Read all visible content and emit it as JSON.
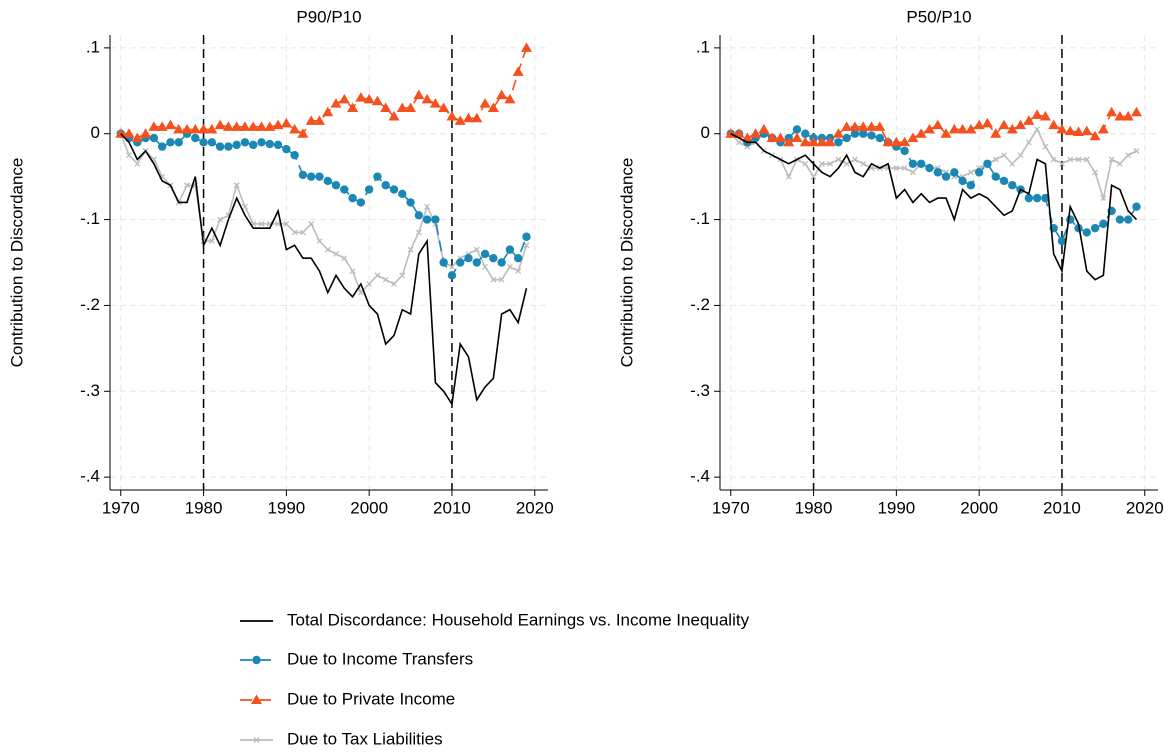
{
  "chart_data": [
    {
      "type": "line",
      "title": "P90/P10",
      "ylabel": "Contribution to Discordance",
      "x": [
        1970,
        1971,
        1972,
        1973,
        1974,
        1975,
        1976,
        1977,
        1978,
        1979,
        1980,
        1981,
        1982,
        1983,
        1984,
        1985,
        1986,
        1987,
        1988,
        1989,
        1990,
        1991,
        1992,
        1993,
        1994,
        1995,
        1996,
        1997,
        1998,
        1999,
        2000,
        2001,
        2002,
        2003,
        2004,
        2005,
        2006,
        2007,
        2008,
        2009,
        2010,
        2011,
        2012,
        2013,
        2014,
        2015,
        2016,
        2017,
        2018,
        2019
      ],
      "xlim": [
        1968.7,
        2021.6
      ],
      "xticks": [
        1970,
        1980,
        1990,
        2000,
        2010,
        2020
      ],
      "ylim": [
        -0.415,
        0.115
      ],
      "yticks": [
        {
          "value": -0.4,
          "label": "-.4"
        },
        {
          "value": -0.3,
          "label": "-.3"
        },
        {
          "value": -0.2,
          "label": "-.2"
        },
        {
          "value": -0.1,
          "label": "-.1"
        },
        0,
        {
          "value": 0.1,
          "label": ".1"
        }
      ],
      "vlines": [
        1980,
        2010
      ],
      "grid": true,
      "series": [
        {
          "name": "Total Discordance: Household Earnings vs. Income Inequality",
          "color": "#000000",
          "dash": "solid",
          "marker": "none",
          "values": [
            0,
            -0.01,
            -0.03,
            -0.02,
            -0.035,
            -0.055,
            -0.06,
            -0.08,
            -0.08,
            -0.05,
            -0.13,
            -0.11,
            -0.13,
            -0.1,
            -0.075,
            -0.095,
            -0.11,
            -0.11,
            -0.11,
            -0.09,
            -0.135,
            -0.13,
            -0.145,
            -0.145,
            -0.16,
            -0.185,
            -0.165,
            -0.18,
            -0.19,
            -0.175,
            -0.2,
            -0.21,
            -0.245,
            -0.235,
            -0.205,
            -0.21,
            -0.14,
            -0.125,
            -0.29,
            -0.3,
            -0.315,
            -0.245,
            -0.26,
            -0.31,
            -0.295,
            -0.285,
            -0.21,
            -0.205,
            -0.22,
            -0.18
          ]
        },
        {
          "name": "Due to Income Transfers",
          "color": "#1a87b4",
          "dash": "dashed",
          "marker": "circle",
          "values": [
            0,
            -0.005,
            -0.01,
            -0.005,
            -0.005,
            -0.015,
            -0.01,
            -0.01,
            0,
            -0.005,
            -0.01,
            -0.01,
            -0.015,
            -0.015,
            -0.013,
            -0.01,
            -0.013,
            -0.01,
            -0.012,
            -0.013,
            -0.018,
            -0.025,
            -0.048,
            -0.05,
            -0.05,
            -0.055,
            -0.06,
            -0.065,
            -0.075,
            -0.08,
            -0.065,
            -0.05,
            -0.06,
            -0.065,
            -0.07,
            -0.08,
            -0.095,
            -0.1,
            -0.1,
            -0.15,
            -0.165,
            -0.15,
            -0.145,
            -0.15,
            -0.14,
            -0.145,
            -0.15,
            -0.135,
            -0.145,
            -0.12
          ]
        },
        {
          "name": "Due to Private Income",
          "color": "#f4511e",
          "dash": "dashed",
          "marker": "triangle",
          "values": [
            0,
            0,
            -0.005,
            0,
            0.008,
            0.008,
            0.01,
            0.005,
            0.005,
            0.005,
            0.005,
            0.005,
            0.01,
            0.008,
            0.008,
            0.008,
            0.008,
            0.008,
            0.008,
            0.01,
            0.012,
            0.005,
            0,
            0.015,
            0.015,
            0.025,
            0.035,
            0.04,
            0.03,
            0.042,
            0.04,
            0.038,
            0.03,
            0.02,
            0.03,
            0.03,
            0.045,
            0.04,
            0.035,
            0.03,
            0.02,
            0.015,
            0.018,
            0.018,
            0.035,
            0.03,
            0.045,
            0.04,
            0.072,
            0.1
          ]
        },
        {
          "name": "Due to Tax Liabilities",
          "color": "#bcbcbc",
          "dash": "solid",
          "marker": "x",
          "values": [
            0,
            -0.025,
            -0.035,
            -0.02,
            -0.03,
            -0.05,
            -0.06,
            -0.08,
            -0.06,
            -0.06,
            -0.125,
            -0.125,
            -0.1,
            -0.095,
            -0.06,
            -0.085,
            -0.105,
            -0.105,
            -0.105,
            -0.105,
            -0.105,
            -0.115,
            -0.115,
            -0.105,
            -0.125,
            -0.135,
            -0.14,
            -0.145,
            -0.16,
            -0.185,
            -0.175,
            -0.165,
            -0.17,
            -0.175,
            -0.165,
            -0.135,
            -0.115,
            -0.085,
            -0.105,
            -0.15,
            -0.155,
            -0.145,
            -0.14,
            -0.135,
            -0.155,
            -0.17,
            -0.17,
            -0.155,
            -0.16,
            -0.13
          ]
        }
      ]
    },
    {
      "type": "line",
      "title": "P50/P10",
      "ylabel": "Contribution to Discordance",
      "x": [
        1970,
        1971,
        1972,
        1973,
        1974,
        1975,
        1976,
        1977,
        1978,
        1979,
        1980,
        1981,
        1982,
        1983,
        1984,
        1985,
        1986,
        1987,
        1988,
        1989,
        1990,
        1991,
        1992,
        1993,
        1994,
        1995,
        1996,
        1997,
        1998,
        1999,
        2000,
        2001,
        2002,
        2003,
        2004,
        2005,
        2006,
        2007,
        2008,
        2009,
        2010,
        2011,
        2012,
        2013,
        2014,
        2015,
        2016,
        2017,
        2018,
        2019
      ],
      "xlim": [
        1968.7,
        2021.6
      ],
      "xticks": [
        1970,
        1980,
        1990,
        2000,
        2010,
        2020
      ],
      "ylim": [
        -0.415,
        0.115
      ],
      "yticks": [
        {
          "value": -0.4,
          "label": "-.4"
        },
        {
          "value": -0.3,
          "label": "-.3"
        },
        {
          "value": -0.2,
          "label": "-.2"
        },
        {
          "value": -0.1,
          "label": "-.1"
        },
        0,
        {
          "value": 0.1,
          "label": ".1"
        }
      ],
      "vlines": [
        1980,
        2010
      ],
      "grid": true,
      "series": [
        {
          "color": "#000000",
          "dash": "solid",
          "marker": "none",
          "values": [
            0,
            -0.005,
            -0.01,
            -0.01,
            -0.02,
            -0.025,
            -0.03,
            -0.035,
            -0.03,
            -0.025,
            -0.035,
            -0.045,
            -0.05,
            -0.04,
            -0.025,
            -0.045,
            -0.05,
            -0.035,
            -0.04,
            -0.035,
            -0.075,
            -0.065,
            -0.08,
            -0.07,
            -0.08,
            -0.075,
            -0.075,
            -0.1,
            -0.065,
            -0.075,
            -0.07,
            -0.075,
            -0.085,
            -0.095,
            -0.09,
            -0.065,
            -0.07,
            -0.03,
            -0.035,
            -0.14,
            -0.16,
            -0.085,
            -0.105,
            -0.16,
            -0.17,
            -0.165,
            -0.06,
            -0.065,
            -0.09,
            -0.1
          ]
        },
        {
          "color": "#1a87b4",
          "dash": "dashed",
          "marker": "circle",
          "values": [
            0,
            0,
            -0.01,
            -0.005,
            0,
            -0.005,
            -0.01,
            -0.005,
            0.005,
            0,
            -0.005,
            -0.005,
            -0.005,
            -0.01,
            -0.005,
            0,
            0,
            -0.002,
            -0.005,
            -0.01,
            -0.015,
            -0.02,
            -0.035,
            -0.035,
            -0.04,
            -0.045,
            -0.05,
            -0.045,
            -0.055,
            -0.06,
            -0.045,
            -0.035,
            -0.05,
            -0.055,
            -0.06,
            -0.065,
            -0.075,
            -0.075,
            -0.075,
            -0.11,
            -0.125,
            -0.1,
            -0.11,
            -0.115,
            -0.11,
            -0.105,
            -0.09,
            -0.1,
            -0.1,
            -0.085
          ]
        },
        {
          "color": "#f4511e",
          "dash": "dashed",
          "marker": "triangle",
          "values": [
            0,
            0,
            -0.005,
            0,
            0.005,
            -0.005,
            -0.005,
            -0.01,
            -0.005,
            -0.01,
            -0.01,
            -0.01,
            -0.01,
            0,
            0.008,
            0.008,
            0.008,
            0.008,
            0.008,
            -0.01,
            -0.01,
            -0.01,
            -0.005,
            0,
            0.005,
            0.01,
            0,
            0.005,
            0.005,
            0.005,
            0.01,
            0.012,
            0,
            0.01,
            0.005,
            0.01,
            0.015,
            0.022,
            0.02,
            0.01,
            0.005,
            0.003,
            0.002,
            0.003,
            -0.003,
            0.005,
            0.025,
            0.02,
            0.02,
            0.025
          ]
        },
        {
          "color": "#bcbcbc",
          "dash": "solid",
          "marker": "x",
          "values": [
            0,
            -0.01,
            -0.015,
            -0.01,
            -0.02,
            -0.025,
            -0.03,
            -0.05,
            -0.03,
            -0.035,
            -0.05,
            -0.035,
            -0.035,
            -0.03,
            -0.035,
            -0.03,
            -0.035,
            -0.04,
            -0.04,
            -0.04,
            -0.04,
            -0.04,
            -0.045,
            -0.035,
            -0.04,
            -0.04,
            -0.045,
            -0.05,
            -0.05,
            -0.045,
            -0.04,
            -0.035,
            -0.03,
            -0.025,
            -0.035,
            -0.025,
            -0.01,
            0.005,
            -0.015,
            -0.03,
            -0.035,
            -0.03,
            -0.03,
            -0.03,
            -0.045,
            -0.075,
            -0.03,
            -0.035,
            -0.025,
            -0.02
          ]
        }
      ]
    }
  ]
}
